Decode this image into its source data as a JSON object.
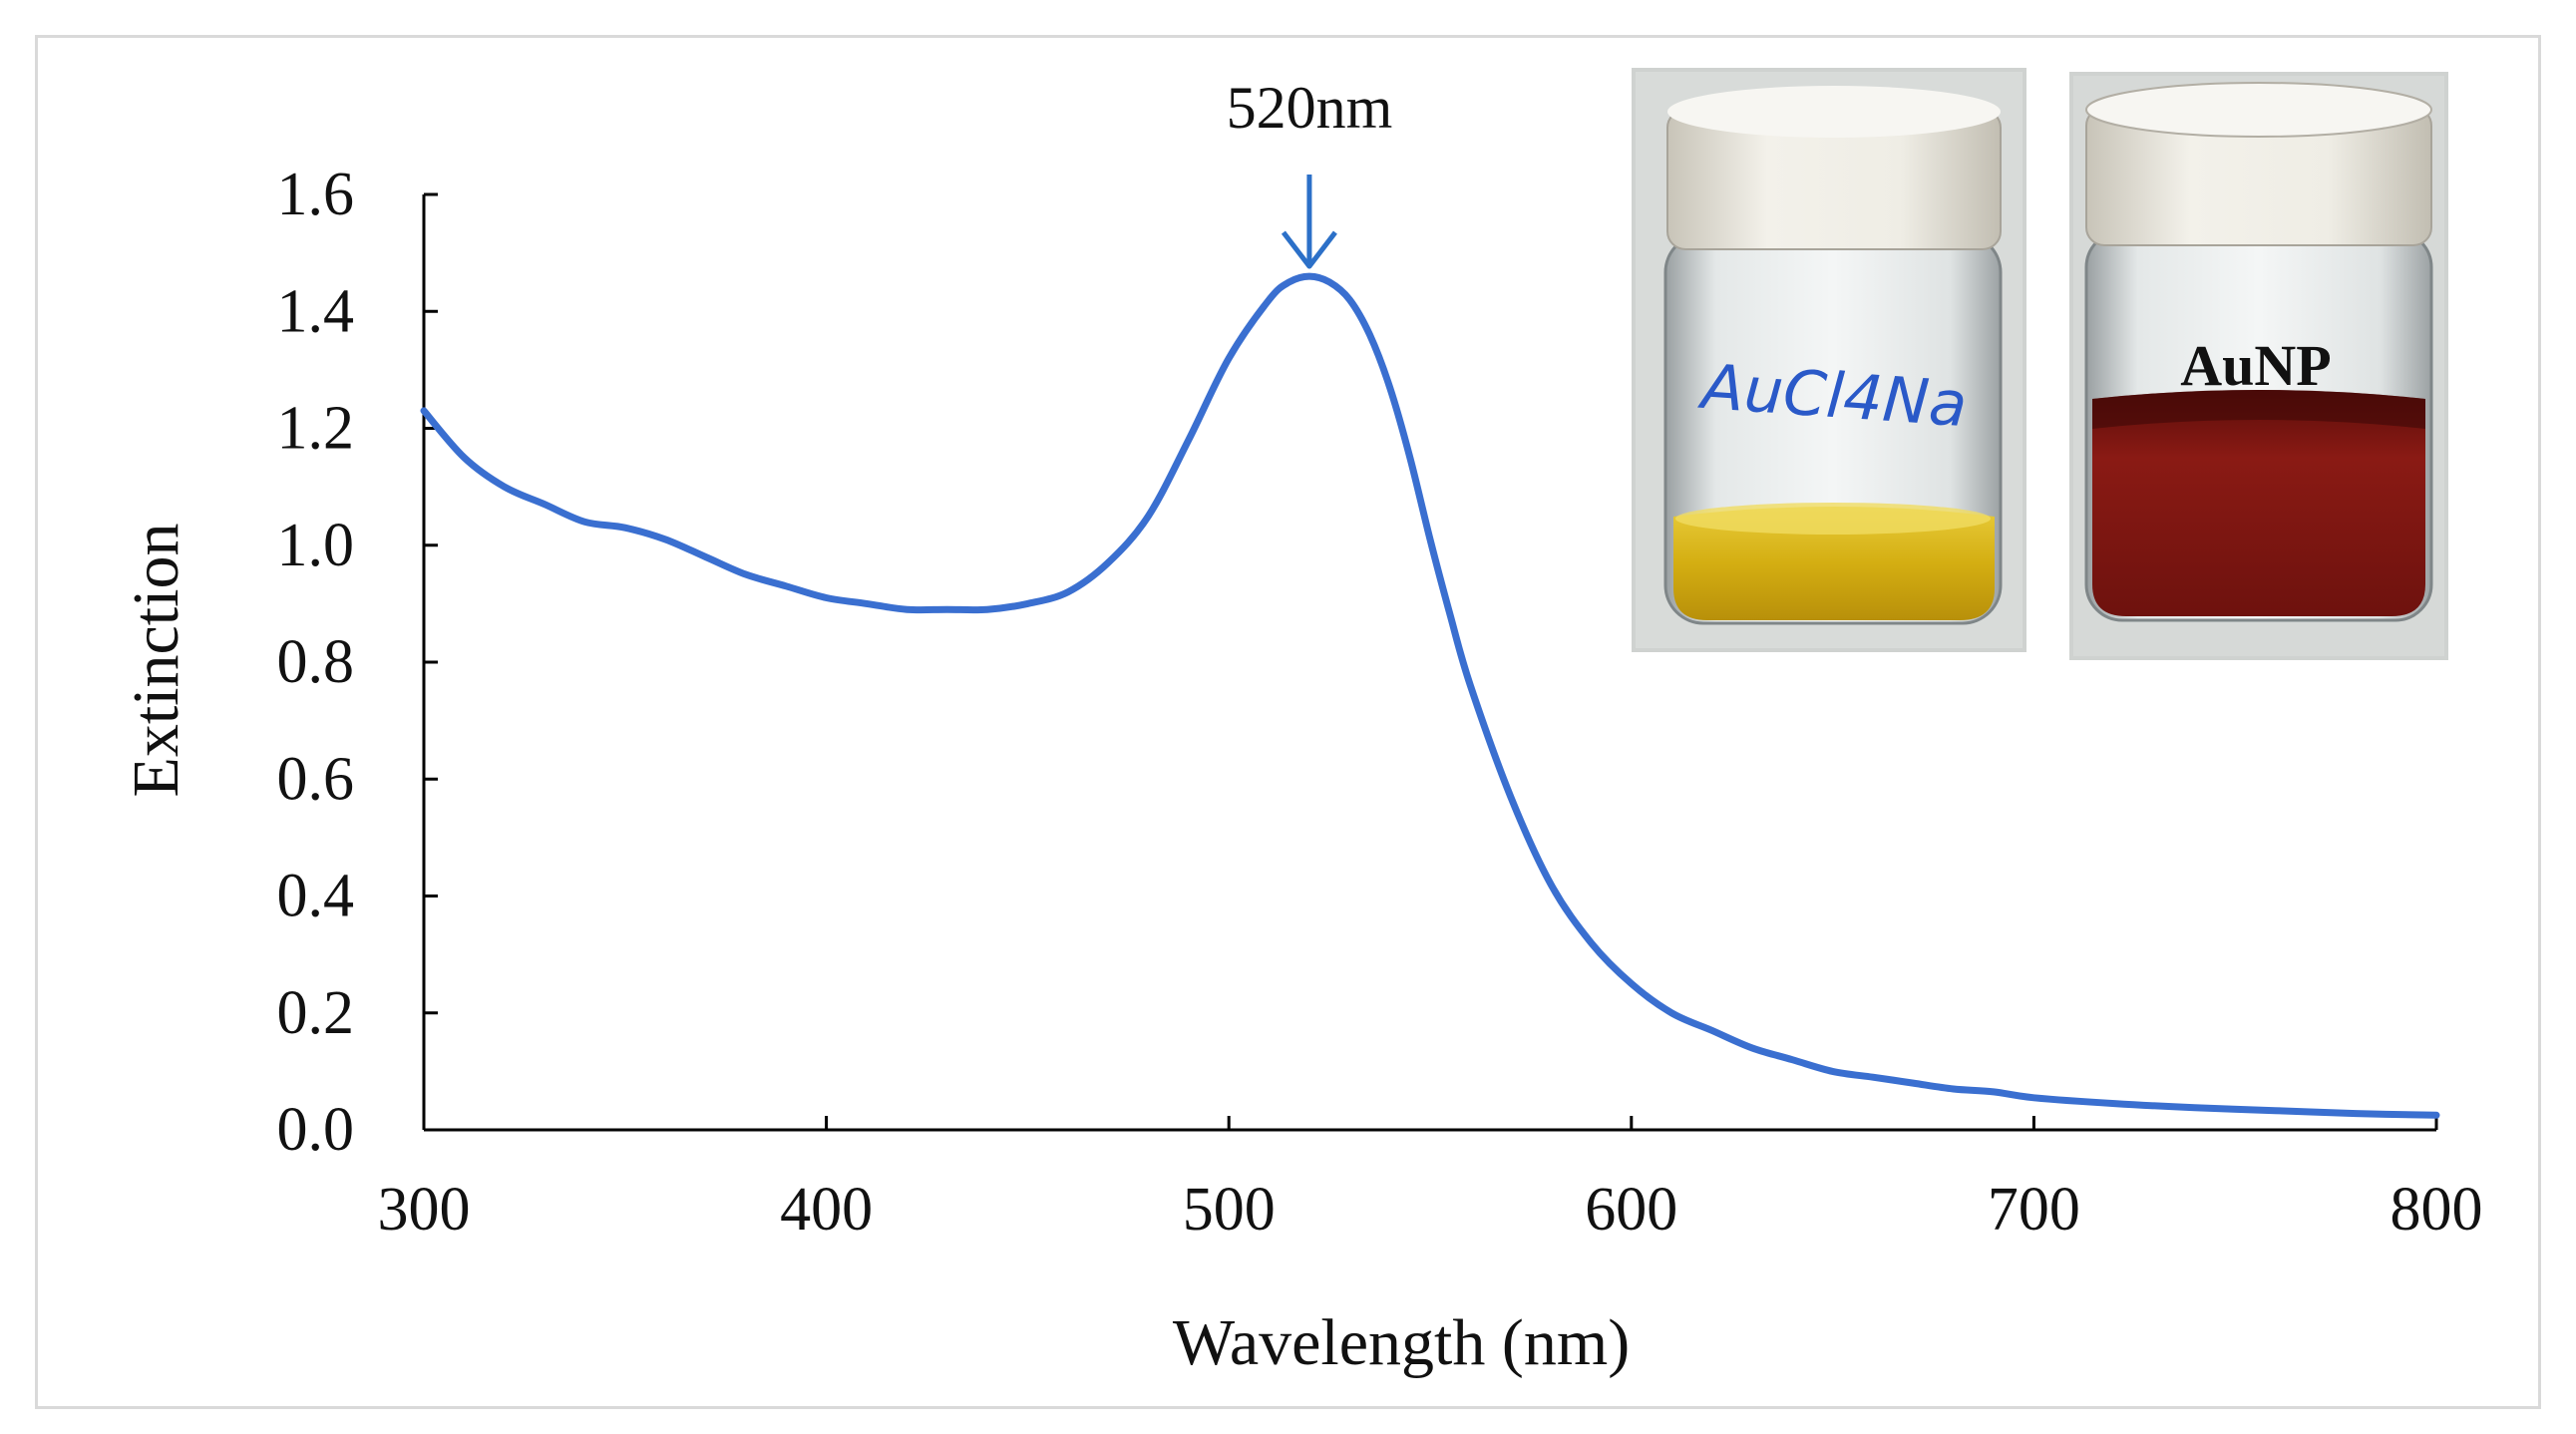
{
  "chart_data": {
    "type": "line",
    "title": "",
    "xlabel": "Wavelength (nm)",
    "ylabel": "Extinction",
    "xlim": [
      300,
      800
    ],
    "ylim": [
      0.0,
      1.6
    ],
    "x_ticks": [
      "300",
      "400",
      "500",
      "600",
      "700",
      "800"
    ],
    "y_ticks": [
      "0.0",
      "0.2",
      "0.4",
      "0.6",
      "0.8",
      "1.0",
      "1.2",
      "1.4",
      "1.6"
    ],
    "grid": false,
    "series": [
      {
        "name": "AuNP",
        "color": "#3a6fd0",
        "x": [
          300,
          310,
          320,
          330,
          340,
          350,
          360,
          370,
          380,
          390,
          400,
          410,
          420,
          430,
          440,
          450,
          460,
          470,
          480,
          490,
          500,
          510,
          515,
          520,
          525,
          530,
          535,
          540,
          545,
          550,
          555,
          560,
          570,
          580,
          590,
          600,
          610,
          620,
          630,
          640,
          650,
          660,
          670,
          680,
          690,
          700,
          720,
          740,
          760,
          780,
          800
        ],
        "y": [
          1.23,
          1.15,
          1.1,
          1.07,
          1.04,
          1.03,
          1.01,
          0.98,
          0.95,
          0.93,
          0.91,
          0.9,
          0.89,
          0.89,
          0.89,
          0.9,
          0.92,
          0.97,
          1.05,
          1.18,
          1.32,
          1.42,
          1.45,
          1.46,
          1.45,
          1.42,
          1.36,
          1.27,
          1.15,
          1.01,
          0.88,
          0.76,
          0.57,
          0.42,
          0.32,
          0.25,
          0.2,
          0.17,
          0.14,
          0.12,
          0.1,
          0.09,
          0.08,
          0.07,
          0.065,
          0.055,
          0.045,
          0.038,
          0.033,
          0.028,
          0.025
        ]
      }
    ],
    "annotations": [
      {
        "text": "520nm",
        "x": 520,
        "type": "arrow-down",
        "color": "#2c70c8"
      }
    ]
  },
  "inset": {
    "left_vial_label": "AuCl4Na",
    "right_vial_label": "AuNP",
    "left_solution_color": "#d7b31a",
    "right_solution_color": "#7e1410"
  }
}
